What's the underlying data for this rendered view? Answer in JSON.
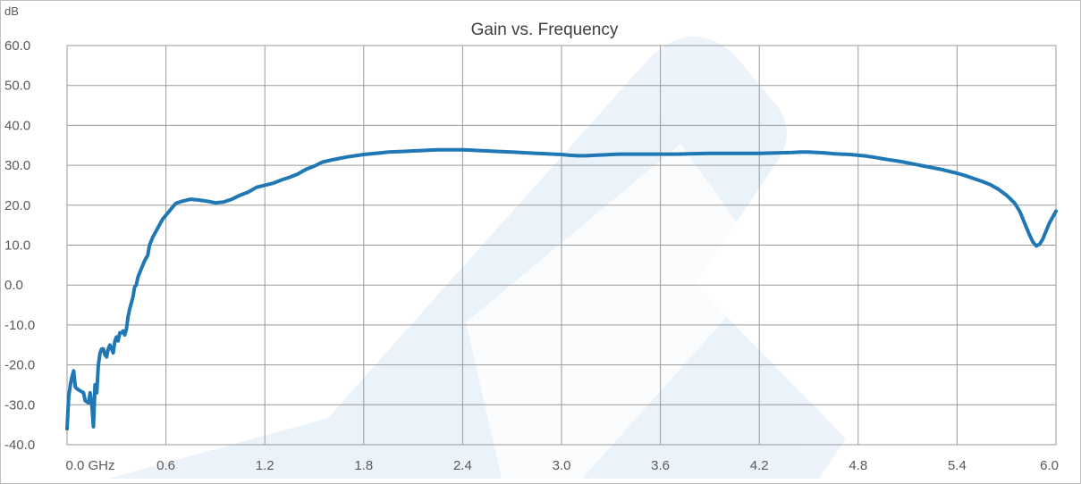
{
  "chart_data": {
    "type": "line",
    "title": "Gain vs. Frequency",
    "ylabel": "dB",
    "xlabel": "",
    "xlim": [
      0,
      6.0
    ],
    "ylim": [
      -40,
      60
    ],
    "grid": true,
    "x_tick_values": [
      0,
      0.6,
      1.2,
      1.8,
      2.4,
      3.0,
      3.6,
      4.2,
      4.8,
      5.4,
      6.0
    ],
    "x_tick_labels": [
      "0.0 GHz",
      "0.6",
      "1.2",
      "1.8",
      "2.4",
      "3.0",
      "3.6",
      "4.2",
      "4.8",
      "5.4",
      "6.0"
    ],
    "y_tick_values": [
      60,
      50,
      40,
      30,
      20,
      10,
      0,
      -10,
      -20,
      -30,
      -40
    ],
    "y_tick_labels": [
      "60.0",
      "50.0",
      "40.0",
      "30.0",
      "20.0",
      "10.0",
      "0.0",
      "-10.0",
      "-20.0",
      "-30.0",
      "-40.0"
    ],
    "colors": {
      "series": "#1f77b4",
      "watermark": "#dceaf7",
      "grid": "#9a9a9a"
    },
    "series": [
      {
        "color": "#1f77b4",
        "points": [
          [
            0.0,
            -36
          ],
          [
            0.01,
            -28
          ],
          [
            0.02,
            -25
          ],
          [
            0.03,
            -23
          ],
          [
            0.04,
            -21.5
          ],
          [
            0.05,
            -25.5
          ],
          [
            0.06,
            -26
          ],
          [
            0.08,
            -26.5
          ],
          [
            0.1,
            -27
          ],
          [
            0.11,
            -29
          ],
          [
            0.13,
            -29.5
          ],
          [
            0.14,
            -27
          ],
          [
            0.15,
            -30
          ],
          [
            0.16,
            -35.5
          ],
          [
            0.17,
            -25
          ],
          [
            0.18,
            -27
          ],
          [
            0.19,
            -20
          ],
          [
            0.2,
            -17
          ],
          [
            0.21,
            -16
          ],
          [
            0.22,
            -16
          ],
          [
            0.23,
            -17.5
          ],
          [
            0.24,
            -18
          ],
          [
            0.25,
            -16
          ],
          [
            0.26,
            -15
          ],
          [
            0.27,
            -16
          ],
          [
            0.28,
            -17
          ],
          [
            0.29,
            -14
          ],
          [
            0.3,
            -13
          ],
          [
            0.31,
            -14
          ],
          [
            0.32,
            -12
          ],
          [
            0.33,
            -12
          ],
          [
            0.34,
            -11.5
          ],
          [
            0.35,
            -12.5
          ],
          [
            0.36,
            -11
          ],
          [
            0.37,
            -8
          ],
          [
            0.38,
            -6
          ],
          [
            0.39,
            -4.5
          ],
          [
            0.4,
            -3
          ],
          [
            0.41,
            -0.5
          ],
          [
            0.42,
            0
          ],
          [
            0.43,
            2
          ],
          [
            0.45,
            4
          ],
          [
            0.47,
            6
          ],
          [
            0.49,
            7.5
          ],
          [
            0.5,
            10
          ],
          [
            0.52,
            12
          ],
          [
            0.54,
            13.5
          ],
          [
            0.56,
            15
          ],
          [
            0.58,
            16.5
          ],
          [
            0.6,
            17.5
          ],
          [
            0.62,
            18.5
          ],
          [
            0.64,
            19.5
          ],
          [
            0.66,
            20.5
          ],
          [
            0.7,
            21
          ],
          [
            0.75,
            21.5
          ],
          [
            0.8,
            21.3
          ],
          [
            0.85,
            21
          ],
          [
            0.9,
            20.6
          ],
          [
            0.95,
            20.8
          ],
          [
            1.0,
            21.5
          ],
          [
            1.05,
            22.5
          ],
          [
            1.1,
            23.3
          ],
          [
            1.15,
            24.5
          ],
          [
            1.2,
            25
          ],
          [
            1.25,
            25.5
          ],
          [
            1.3,
            26.3
          ],
          [
            1.35,
            27
          ],
          [
            1.4,
            27.8
          ],
          [
            1.45,
            29
          ],
          [
            1.5,
            29.8
          ],
          [
            1.55,
            30.8
          ],
          [
            1.6,
            31.3
          ],
          [
            1.65,
            31.7
          ],
          [
            1.7,
            32.1
          ],
          [
            1.75,
            32.4
          ],
          [
            1.8,
            32.7
          ],
          [
            1.85,
            32.9
          ],
          [
            1.9,
            33.1
          ],
          [
            1.95,
            33.3
          ],
          [
            2.0,
            33.4
          ],
          [
            2.05,
            33.5
          ],
          [
            2.1,
            33.6
          ],
          [
            2.15,
            33.7
          ],
          [
            2.2,
            33.8
          ],
          [
            2.25,
            33.9
          ],
          [
            2.3,
            33.9
          ],
          [
            2.35,
            33.9
          ],
          [
            2.4,
            33.9
          ],
          [
            2.45,
            33.8
          ],
          [
            2.5,
            33.7
          ],
          [
            2.55,
            33.6
          ],
          [
            2.6,
            33.5
          ],
          [
            2.65,
            33.4
          ],
          [
            2.7,
            33.3
          ],
          [
            2.75,
            33.2
          ],
          [
            2.8,
            33.1
          ],
          [
            2.85,
            33.0
          ],
          [
            2.9,
            32.9
          ],
          [
            2.95,
            32.8
          ],
          [
            3.0,
            32.7
          ],
          [
            3.05,
            32.5
          ],
          [
            3.1,
            32.4
          ],
          [
            3.15,
            32.4
          ],
          [
            3.2,
            32.5
          ],
          [
            3.25,
            32.6
          ],
          [
            3.3,
            32.7
          ],
          [
            3.35,
            32.8
          ],
          [
            3.4,
            32.8
          ],
          [
            3.45,
            32.8
          ],
          [
            3.5,
            32.8
          ],
          [
            3.55,
            32.8
          ],
          [
            3.6,
            32.8
          ],
          [
            3.7,
            32.8
          ],
          [
            3.8,
            32.9
          ],
          [
            3.9,
            33.0
          ],
          [
            4.0,
            33.0
          ],
          [
            4.1,
            33.0
          ],
          [
            4.2,
            33.0
          ],
          [
            4.3,
            33.1
          ],
          [
            4.4,
            33.2
          ],
          [
            4.45,
            33.3
          ],
          [
            4.5,
            33.3
          ],
          [
            4.55,
            33.2
          ],
          [
            4.6,
            33.1
          ],
          [
            4.65,
            32.9
          ],
          [
            4.7,
            32.8
          ],
          [
            4.75,
            32.7
          ],
          [
            4.8,
            32.5
          ],
          [
            4.85,
            32.3
          ],
          [
            4.9,
            32.0
          ],
          [
            4.95,
            31.6
          ],
          [
            5.0,
            31.3
          ],
          [
            5.05,
            31.0
          ],
          [
            5.1,
            30.6
          ],
          [
            5.15,
            30.2
          ],
          [
            5.2,
            29.8
          ],
          [
            5.25,
            29.4
          ],
          [
            5.3,
            29.0
          ],
          [
            5.35,
            28.5
          ],
          [
            5.4,
            28.0
          ],
          [
            5.45,
            27.4
          ],
          [
            5.5,
            26.7
          ],
          [
            5.55,
            26.0
          ],
          [
            5.6,
            25.2
          ],
          [
            5.65,
            24.0
          ],
          [
            5.7,
            22.5
          ],
          [
            5.75,
            20.5
          ],
          [
            5.78,
            18.5
          ],
          [
            5.8,
            16.5
          ],
          [
            5.82,
            14.5
          ],
          [
            5.84,
            12.5
          ],
          [
            5.86,
            10.8
          ],
          [
            5.88,
            9.8
          ],
          [
            5.9,
            10.2
          ],
          [
            5.92,
            11.5
          ],
          [
            5.94,
            13.5
          ],
          [
            5.96,
            15.5
          ],
          [
            5.98,
            17.0
          ],
          [
            6.0,
            18.5
          ]
        ]
      }
    ]
  }
}
